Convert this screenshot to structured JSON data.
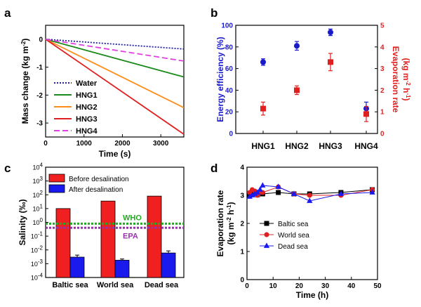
{
  "chart_data": [
    {
      "panel": "a",
      "type": "line",
      "xlabel": "Time (s)",
      "ylabel": "Mass change (kg m",
      "ylabel_sup": "-2",
      "ylabel_end": ")",
      "xlim": [
        0,
        3600
      ],
      "ylim": [
        -3.5,
        0.5
      ],
      "xticks": [
        "0",
        "1000",
        "2000",
        "3000"
      ],
      "yticks": [
        "0",
        "-1",
        "-2",
        "-3"
      ],
      "x": [
        0,
        3600
      ],
      "series": [
        {
          "name": "Water",
          "color": "#1f1fb4",
          "dash": "dotted",
          "values": [
            0,
            -0.35
          ]
        },
        {
          "name": "HNG1",
          "color": "#1a8a1a",
          "dash": "solid",
          "values": [
            0,
            -1.35
          ]
        },
        {
          "name": "HNG2",
          "color": "#ff8c1a",
          "dash": "solid",
          "values": [
            0,
            -2.45
          ]
        },
        {
          "name": "HNG3",
          "color": "#e02020",
          "dash": "solid",
          "values": [
            0,
            -3.4
          ]
        },
        {
          "name": "HNG4",
          "color": "#e040e0",
          "dash": "dashed",
          "values": [
            0,
            -0.78
          ]
        }
      ]
    },
    {
      "panel": "b",
      "type": "scatter",
      "categories": [
        "HNG1",
        "HNG2",
        "HNG3",
        "HNG4"
      ],
      "ylabel": "Energy efficiency (%)",
      "ylabel2": "Evaporation rate",
      "ylabel2_line2": "(kg m",
      "ylabel2_sup1": "-2",
      "ylabel2_mid": " h",
      "ylabel2_sup2": "-1",
      "ylabel2_end": ")",
      "ylim": [
        0,
        100
      ],
      "ylim2": [
        0,
        5
      ],
      "yticks": [
        "0",
        "20",
        "40",
        "60",
        "80",
        "100"
      ],
      "yticks2": [
        "0",
        "1",
        "2",
        "3",
        "4",
        "5"
      ],
      "series": [
        {
          "name": "Energy efficiency",
          "axis": "left",
          "color": "#1a1acc",
          "marker": "circle",
          "values": [
            66,
            81,
            93.5,
            23
          ],
          "errors": [
            3,
            4,
            3,
            6
          ]
        },
        {
          "name": "Evaporation rate",
          "axis": "right",
          "color": "#e02020",
          "marker": "square",
          "values": [
            1.15,
            2.0,
            3.3,
            0.9
          ],
          "errors": [
            0.3,
            0.2,
            0.4,
            0.35
          ]
        }
      ]
    },
    {
      "panel": "c",
      "type": "bar",
      "categories": [
        "Baltic sea",
        "World sea",
        "Dead sea"
      ],
      "ylabel": "Salinity (‰)",
      "yscale": "log",
      "ylim": [
        0.0001,
        10000
      ],
      "ytick_exponents": [
        "-4",
        "-3",
        "-2",
        "-1",
        "0",
        "1",
        "2",
        "3",
        "4"
      ],
      "series": [
        {
          "name": "Before desalination",
          "color": "#f02020",
          "values": [
            10,
            35,
            80
          ],
          "errors": [
            0,
            0,
            0
          ]
        },
        {
          "name": "After desalination",
          "color": "#1a1aee",
          "values": [
            0.003,
            0.0018,
            0.006
          ],
          "errors": [
            0.0012,
            0.0004,
            0.0025
          ]
        }
      ],
      "reference_lines": [
        {
          "label": "WHO",
          "value": 0.8,
          "color": "#22aa22"
        },
        {
          "label": "EPA",
          "value": 0.4,
          "color": "#9933aa"
        }
      ]
    },
    {
      "panel": "d",
      "type": "line",
      "xlabel": "Time (h)",
      "ylabel": "Evaporation rate",
      "ylabel_line2": "(kg m",
      "ylabel_sup1": "-2",
      "ylabel_mid": " h",
      "ylabel_sup2": "-1",
      "ylabel_end": ")",
      "xlim": [
        0,
        50
      ],
      "ylim": [
        0,
        4
      ],
      "xticks": [
        "0",
        "10",
        "20",
        "30",
        "40",
        "50"
      ],
      "yticks": [
        "0",
        "1",
        "2",
        "3",
        "4"
      ],
      "series": [
        {
          "name": "Baltic sea",
          "color": "#000000",
          "marker": "square",
          "x": [
            1,
            2,
            3,
            4,
            5,
            6,
            12,
            18,
            24,
            36,
            48
          ],
          "values": [
            3.0,
            3.05,
            3.1,
            3.02,
            3.08,
            3.05,
            3.1,
            3.05,
            3.05,
            3.1,
            3.2
          ]
        },
        {
          "name": "World sea",
          "color": "#e02020",
          "marker": "circle",
          "x": [
            1,
            2,
            3,
            4,
            5,
            6,
            12,
            18,
            24,
            36,
            48
          ],
          "values": [
            3.1,
            3.2,
            3.15,
            3.0,
            3.1,
            3.1,
            3.3,
            3.05,
            3.0,
            3.0,
            3.2
          ]
        },
        {
          "name": "Dead sea",
          "color": "#1a1aee",
          "marker": "triangle",
          "x": [
            1,
            2,
            3,
            4,
            5,
            6,
            12,
            18,
            24,
            36,
            48
          ],
          "values": [
            2.95,
            3.0,
            3.05,
            3.1,
            3.2,
            3.35,
            3.3,
            3.05,
            2.8,
            3.05,
            3.1
          ]
        }
      ]
    }
  ]
}
